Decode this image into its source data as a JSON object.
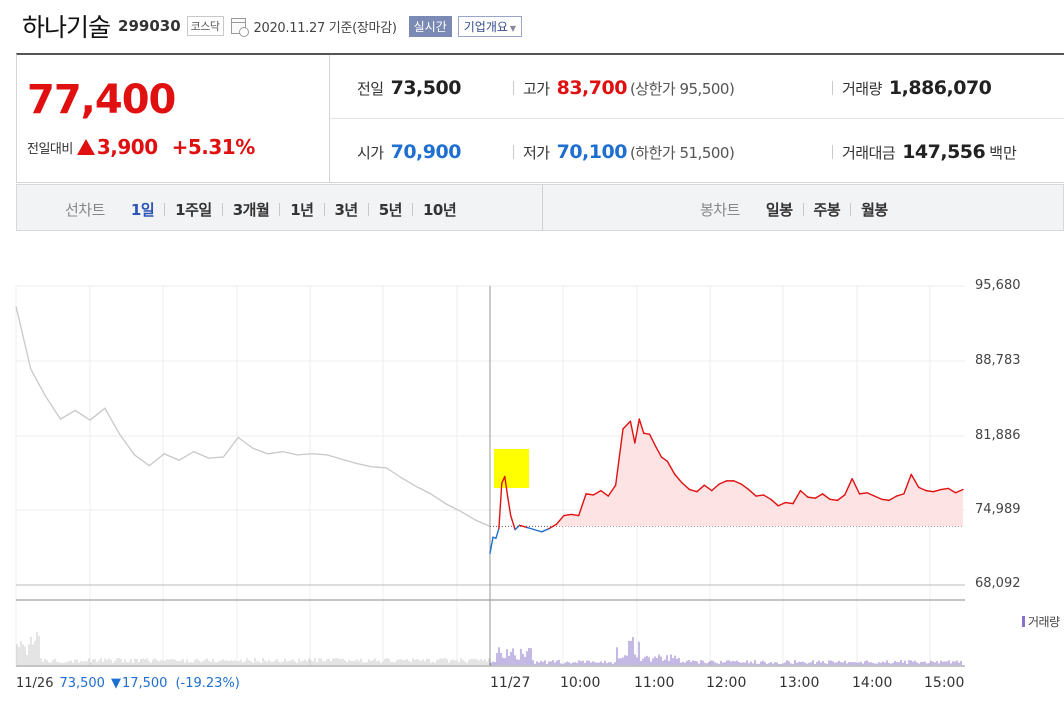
{
  "header": {
    "company_name": "하나기술",
    "stock_code": "299030",
    "market": "코스닥",
    "date_text": "2020.11.27 기준(장마감)",
    "realtime_label": "실시간",
    "company_overview_label": "기업개요"
  },
  "quote": {
    "price": "77,400",
    "change_label": "전일대비",
    "change_amount": "3,900",
    "change_pct": "+5.31%",
    "stats": {
      "prev_close": {
        "label": "전일",
        "value": "73,500"
      },
      "high": {
        "label": "고가",
        "value": "83,700",
        "extra": "(상한가 95,500)"
      },
      "volume": {
        "label": "거래량",
        "value": "1,886,070"
      },
      "open": {
        "label": "시가",
        "value": "70,900"
      },
      "low": {
        "label": "저가",
        "value": "70,100",
        "extra": "(하한가 51,500)"
      },
      "trade_value": {
        "label": "거래대금",
        "value": "147,556",
        "unit": "백만"
      }
    }
  },
  "tabs": {
    "line_chart_label": "선차트",
    "periods": [
      "1일",
      "1주일",
      "3개월",
      "1년",
      "3년",
      "5년",
      "10년"
    ],
    "active_period": "1일",
    "candle_chart_label": "봉차트",
    "candle_periods": [
      "일봉",
      "주봉",
      "월봉"
    ]
  },
  "chart_data": {
    "type": "line",
    "y_ticks": [
      "95,680",
      "88,783",
      "81,886",
      "74,989",
      "68,092"
    ],
    "ylim": [
      68092,
      95680
    ],
    "x_ticks": [
      "11/27",
      "10:00",
      "11:00",
      "12:00",
      "13:00",
      "14:00",
      "15:00"
    ],
    "prev_close": 73500,
    "volume_legend": "거래량",
    "prev_day": {
      "date": "11/26",
      "close": "73,500",
      "change": "17,500",
      "change_pct": "(-19.23%)",
      "series": [
        93800,
        88000,
        85500,
        83400,
        84200,
        83300,
        84400,
        82000,
        80100,
        79100,
        80200,
        79600,
        80400,
        79800,
        79900,
        81700,
        80700,
        80200,
        80400,
        80100,
        80200,
        80100,
        79700,
        79300,
        79000,
        78900,
        78000,
        77200,
        76500,
        75600,
        74900,
        74100,
        73500
      ]
    },
    "today": {
      "series": [
        {
          "t": 0,
          "p": 71000
        },
        {
          "t": 2,
          "p": 72500
        },
        {
          "t": 4,
          "p": 72400
        },
        {
          "t": 6,
          "p": 73300
        },
        {
          "t": 8,
          "p": 77500
        },
        {
          "t": 10,
          "p": 78100
        },
        {
          "t": 12,
          "p": 76200
        },
        {
          "t": 14,
          "p": 74500
        },
        {
          "t": 17,
          "p": 73200
        },
        {
          "t": 20,
          "p": 73600
        },
        {
          "t": 25,
          "p": 73400
        },
        {
          "t": 30,
          "p": 73200
        },
        {
          "t": 35,
          "p": 73000
        },
        {
          "t": 40,
          "p": 73300
        },
        {
          "t": 45,
          "p": 73700
        },
        {
          "t": 50,
          "p": 74500
        },
        {
          "t": 55,
          "p": 74600
        },
        {
          "t": 60,
          "p": 74500
        },
        {
          "t": 65,
          "p": 76500
        },
        {
          "t": 70,
          "p": 76400
        },
        {
          "t": 75,
          "p": 76800
        },
        {
          "t": 80,
          "p": 76300
        },
        {
          "t": 85,
          "p": 77300
        },
        {
          "t": 90,
          "p": 82500
        },
        {
          "t": 95,
          "p": 83200
        },
        {
          "t": 98,
          "p": 81200
        },
        {
          "t": 101,
          "p": 83400
        },
        {
          "t": 104,
          "p": 82100
        },
        {
          "t": 108,
          "p": 82000
        },
        {
          "t": 112,
          "p": 80900
        },
        {
          "t": 116,
          "p": 79900
        },
        {
          "t": 120,
          "p": 79500
        },
        {
          "t": 125,
          "p": 78300
        },
        {
          "t": 130,
          "p": 77500
        },
        {
          "t": 135,
          "p": 76900
        },
        {
          "t": 140,
          "p": 76700
        },
        {
          "t": 145,
          "p": 77300
        },
        {
          "t": 150,
          "p": 76800
        },
        {
          "t": 155,
          "p": 77400
        },
        {
          "t": 160,
          "p": 77700
        },
        {
          "t": 165,
          "p": 77700
        },
        {
          "t": 170,
          "p": 77400
        },
        {
          "t": 175,
          "p": 76900
        },
        {
          "t": 180,
          "p": 76300
        },
        {
          "t": 185,
          "p": 76400
        },
        {
          "t": 190,
          "p": 76000
        },
        {
          "t": 195,
          "p": 75400
        },
        {
          "t": 200,
          "p": 75700
        },
        {
          "t": 205,
          "p": 75600
        },
        {
          "t": 210,
          "p": 76800
        },
        {
          "t": 215,
          "p": 76200
        },
        {
          "t": 220,
          "p": 76100
        },
        {
          "t": 225,
          "p": 76500
        },
        {
          "t": 230,
          "p": 76000
        },
        {
          "t": 235,
          "p": 75900
        },
        {
          "t": 240,
          "p": 76400
        },
        {
          "t": 245,
          "p": 77900
        },
        {
          "t": 250,
          "p": 76500
        },
        {
          "t": 255,
          "p": 76600
        },
        {
          "t": 260,
          "p": 76300
        },
        {
          "t": 265,
          "p": 76000
        },
        {
          "t": 270,
          "p": 75900
        },
        {
          "t": 275,
          "p": 76300
        },
        {
          "t": 280,
          "p": 76500
        },
        {
          "t": 285,
          "p": 78300
        },
        {
          "t": 290,
          "p": 77100
        },
        {
          "t": 295,
          "p": 76800
        },
        {
          "t": 300,
          "p": 76700
        },
        {
          "t": 305,
          "p": 76900
        },
        {
          "t": 310,
          "p": 77000
        },
        {
          "t": 315,
          "p": 76600
        },
        {
          "t": 320,
          "p": 76900
        }
      ]
    }
  },
  "colors": {
    "up": "#e01010",
    "down": "#1f6fd0",
    "prev_line": "#c8c8c8",
    "area_fill": "#fde3e3",
    "volume": "#8a72c8",
    "highlight": "#ffff00"
  }
}
